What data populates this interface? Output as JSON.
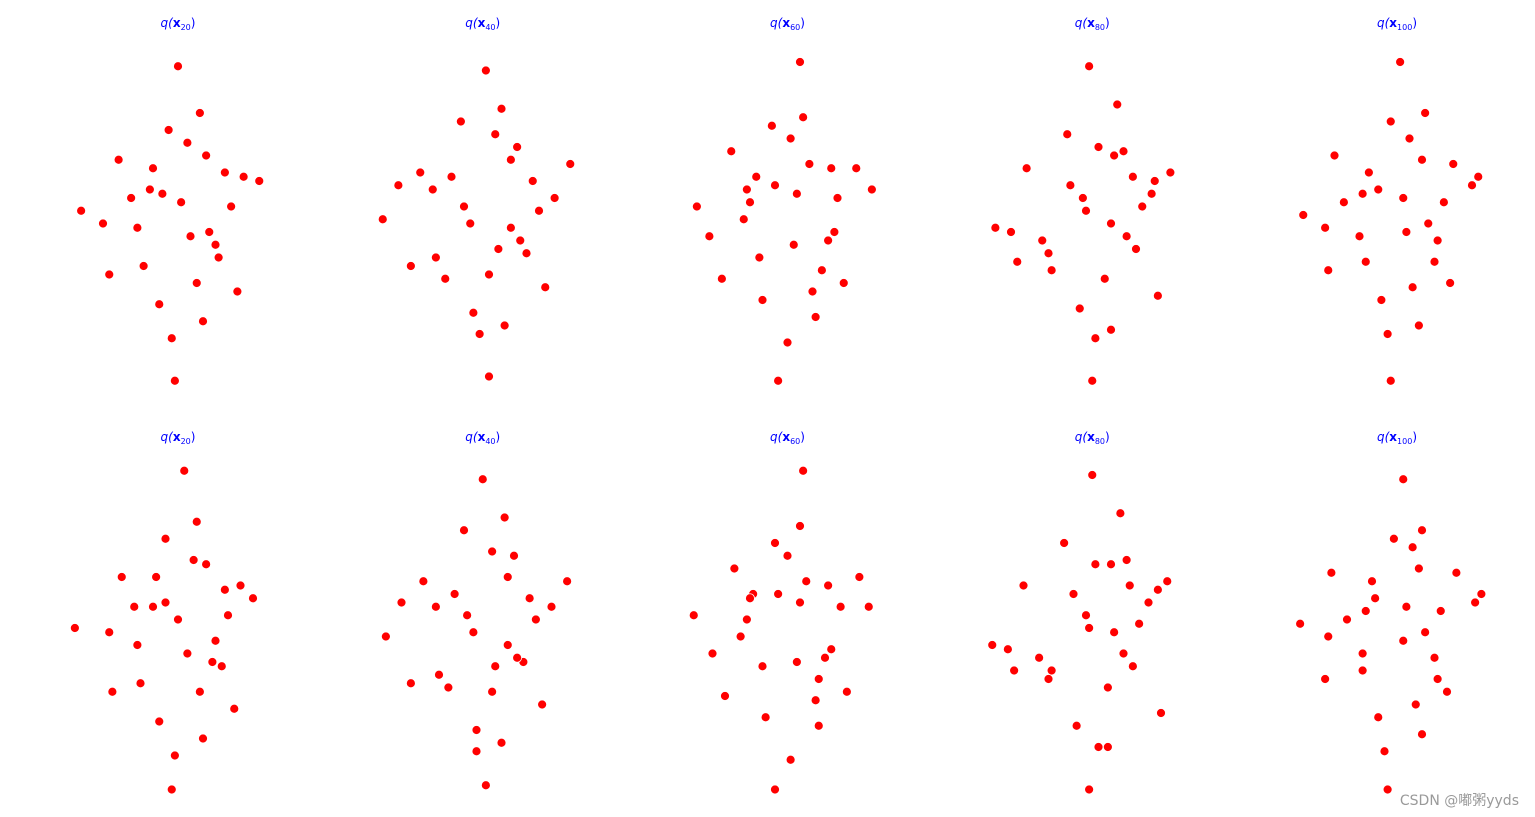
{
  "chart_data": [
    {
      "type": "scatter",
      "title": [
        "q(",
        "x",
        "20",
        ")"
      ],
      "color": "#ff0000",
      "xlim": [
        -4,
        4
      ],
      "ylim": [
        -4,
        4
      ],
      "x": [
        0.1,
        -0.8,
        1.2,
        -1.5,
        0.6,
        -0.3,
        2.1,
        -2.4,
        0.9,
        -1.1,
        0.4,
        1.7,
        -0.6,
        -1.9,
        0.0,
        1.3,
        -0.9,
        2.6,
        -3.1,
        0.7,
        -0.2,
        1.0,
        -1.3,
        0.3,
        1.9,
        -0.5,
        -2.2,
        0.8,
        -0.1,
        1.5
      ],
      "y": [
        0.3,
        1.1,
        -0.7,
        0.4,
        -1.6,
        2.0,
        0.9,
        -0.2,
        1.4,
        -1.2,
        -0.5,
        0.2,
        -2.1,
        1.3,
        3.5,
        -1.0,
        0.6,
        0.8,
        0.1,
        2.4,
        -2.9,
        -0.4,
        -0.3,
        1.7,
        -1.8,
        0.5,
        -1.4,
        -2.5,
        -3.9,
        1.0
      ]
    },
    {
      "type": "scatter",
      "title": [
        "q(",
        "x",
        "40",
        ")"
      ],
      "color": "#ff0000",
      "xlim": [
        -4,
        4
      ],
      "ylim": [
        -4,
        4
      ],
      "x": [
        -0.4,
        0.9,
        -1.6,
        1.4,
        0.2,
        -0.7,
        2.3,
        -2.7,
        1.1,
        -1.2,
        0.5,
        1.8,
        -0.3,
        -2.0,
        0.1,
        1.2,
        -1.0,
        2.8,
        -3.2,
        0.6,
        -0.1,
        0.9,
        -1.5,
        0.4,
        2.0,
        -0.6,
        -2.3,
        0.7,
        0.2,
        1.6
      ],
      "y": [
        -0.2,
        1.3,
        0.6,
        -0.9,
        -1.4,
        2.2,
        0.4,
        0.7,
        1.6,
        -1.5,
        -0.8,
        0.1,
        -2.3,
        1.0,
        3.4,
        -0.6,
        0.9,
        1.2,
        -0.1,
        2.5,
        -2.8,
        -0.3,
        -1.0,
        1.9,
        -1.7,
        0.2,
        -1.2,
        -2.6,
        -3.8,
        0.8
      ]
    },
    {
      "type": "scatter",
      "title": [
        "q(",
        "x",
        "60",
        ")"
      ],
      "color": "#ff0000",
      "xlim": [
        -4,
        4
      ],
      "ylim": [
        -4,
        4
      ],
      "x": [
        0.3,
        -1.0,
        1.5,
        -1.3,
        0.8,
        -0.5,
        2.2,
        -2.5,
        0.7,
        -0.9,
        0.2,
        1.6,
        -0.8,
        -1.8,
        0.4,
        1.1,
        -1.2,
        2.7,
        -2.9,
        0.5,
        0.0,
        1.3,
        -1.4,
        0.1,
        1.8,
        -0.4,
        -2.1,
        0.9,
        -0.3,
        1.4
      ],
      "y": [
        0.5,
        0.9,
        -0.4,
        0.6,
        -1.8,
        2.1,
        1.1,
        -0.5,
        1.2,
        -1.0,
        -0.7,
        0.4,
        -2.0,
        1.5,
        3.6,
        -1.3,
        0.3,
        0.6,
        0.2,
        2.3,
        -3.0,
        -0.6,
        -0.1,
        1.8,
        -1.6,
        0.7,
        -1.5,
        -2.4,
        -3.9,
        1.1
      ]
    },
    {
      "type": "scatter",
      "title": [
        "q(",
        "x",
        "80",
        ")"
      ],
      "color": "#ff0000",
      "xlim": [
        -4,
        4
      ],
      "ylim": [
        -4,
        4
      ],
      "x": [
        -0.2,
        0.7,
        -1.4,
        1.6,
        0.4,
        -0.8,
        2.0,
        -2.6,
        1.0,
        -1.3,
        0.6,
        1.9,
        -0.4,
        -2.1,
        -0.1,
        1.4,
        -0.7,
        2.5,
        -3.1,
        0.8,
        0.1,
        1.1,
        -1.6,
        0.2,
        2.1,
        -0.3,
        -2.4,
        0.6,
        0.0,
        1.3
      ],
      "y": [
        0.1,
        1.4,
        -0.9,
        0.2,
        -1.5,
        1.9,
        0.8,
        -0.4,
        1.5,
        -1.3,
        -0.2,
        0.5,
        -2.2,
        1.1,
        3.5,
        -0.8,
        0.7,
        1.0,
        -0.3,
        2.6,
        -2.9,
        -0.5,
        -0.6,
        1.6,
        -1.9,
        0.4,
        -1.1,
        -2.7,
        -3.9,
        0.9
      ]
    },
    {
      "type": "scatter",
      "title": [
        "q(",
        "x",
        "100",
        ")"
      ],
      "color": "#ff0000",
      "xlim": [
        -4,
        4
      ],
      "ylim": [
        -4,
        4
      ],
      "x": [
        0.2,
        -0.9,
        1.3,
        -1.7,
        0.5,
        -0.2,
        2.4,
        -2.3,
        0.8,
        -1.0,
        0.3,
        1.5,
        -0.5,
        -2.0,
        0.1,
        1.2,
        -1.1,
        2.6,
        -3.0,
        0.9,
        -0.3,
        1.0,
        -1.2,
        0.4,
        1.7,
        -0.6,
        -2.2,
        0.7,
        -0.2,
        1.8
      ],
      "y": [
        0.4,
        1.0,
        -0.6,
        0.3,
        -1.7,
        2.2,
        0.7,
        -0.3,
        1.3,
        -1.1,
        -0.4,
        0.3,
        -2.0,
        1.4,
        3.6,
        -1.1,
        0.5,
        0.9,
        0.0,
        2.4,
        -2.8,
        -0.2,
        -0.5,
        1.8,
        -1.6,
        0.6,
        -1.3,
        -2.6,
        -3.9,
        1.2
      ]
    },
    {
      "type": "scatter",
      "title": [
        "q(",
        "x",
        "20",
        ")"
      ],
      "color": "#ff0000",
      "xlim": [
        -4,
        4
      ],
      "ylim": [
        -4,
        4
      ],
      "x": [
        0.0,
        -0.7,
        1.1,
        -1.4,
        0.7,
        -0.4,
        2.0,
        -2.2,
        0.9,
        -1.2,
        0.3,
        1.6,
        -0.6,
        -1.8,
        0.2,
        1.4,
        -0.8,
        2.4,
        -3.3,
        0.6,
        -0.1,
        1.2,
        -1.3,
        0.5,
        1.8,
        -0.4,
        -2.1,
        0.8,
        -0.2,
        1.5
      ],
      "y": [
        0.2,
        1.2,
        -0.8,
        0.5,
        -1.5,
        2.1,
        1.0,
        -0.1,
        1.5,
        -1.3,
        -0.6,
        0.3,
        -2.2,
        1.2,
        3.7,
        -0.9,
        0.5,
        0.7,
        0.0,
        2.5,
        -3.0,
        -0.3,
        -0.4,
        1.6,
        -1.9,
        0.6,
        -1.5,
        -2.6,
        -3.8,
        0.9
      ]
    },
    {
      "type": "scatter",
      "title": [
        "q(",
        "x",
        "40",
        ")"
      ],
      "color": "#ff0000",
      "xlim": [
        -4,
        4
      ],
      "ylim": [
        -4,
        4
      ],
      "x": [
        -0.3,
        0.8,
        -1.5,
        1.3,
        0.3,
        -0.6,
        2.2,
        -2.6,
        1.0,
        -1.1,
        0.4,
        1.7,
        -0.2,
        -1.9,
        0.0,
        1.1,
        -0.9,
        2.7,
        -3.1,
        0.7,
        -0.2,
        0.8,
        -1.4,
        0.3,
        1.9,
        -0.5,
        -2.3,
        0.6,
        0.1,
        1.5
      ],
      "y": [
        -0.1,
        1.2,
        0.5,
        -0.8,
        -1.5,
        2.3,
        0.5,
        0.6,
        1.7,
        -1.4,
        -0.9,
        0.2,
        -2.4,
        1.1,
        3.5,
        -0.7,
        0.8,
        1.1,
        -0.2,
        2.6,
        -2.9,
        -0.4,
        -1.1,
        1.8,
        -1.8,
        0.3,
        -1.3,
        -2.7,
        -3.7,
        0.7
      ]
    },
    {
      "type": "scatter",
      "title": [
        "q(",
        "x",
        "60",
        ")"
      ],
      "color": "#ff0000",
      "xlim": [
        -4,
        4
      ],
      "ylim": [
        -4,
        4
      ],
      "x": [
        0.4,
        -1.1,
        1.4,
        -1.2,
        0.9,
        -0.4,
        2.3,
        -2.4,
        0.6,
        -0.8,
        0.3,
        1.7,
        -0.7,
        -1.7,
        0.5,
        1.0,
        -1.3,
        2.6,
        -3.0,
        0.4,
        0.1,
        1.2,
        -1.5,
        0.0,
        1.9,
        -0.3,
        -2.0,
        1.0,
        -0.4,
        1.3
      ],
      "y": [
        0.6,
        0.8,
        -0.5,
        0.7,
        -1.7,
        2.0,
        1.2,
        -0.6,
        1.1,
        -0.9,
        -0.8,
        0.5,
        -2.1,
        1.4,
        3.7,
        -1.2,
        0.2,
        0.5,
        0.3,
        2.4,
        -3.1,
        -0.7,
        -0.2,
        1.7,
        -1.5,
        0.8,
        -1.6,
        -2.3,
        -3.8,
        1.0
      ]
    },
    {
      "type": "scatter",
      "title": [
        "q(",
        "x",
        "80",
        ")"
      ],
      "color": "#ff0000",
      "xlim": [
        -4,
        4
      ],
      "ylim": [
        -4,
        4
      ],
      "x": [
        -0.1,
        0.6,
        -1.3,
        1.5,
        0.5,
        -0.9,
        2.1,
        -2.7,
        1.1,
        -1.4,
        0.7,
        1.8,
        -0.5,
        -2.2,
        0.0,
        1.3,
        -0.6,
        2.4,
        -3.2,
        0.9,
        0.2,
        1.0,
        -1.7,
        0.1,
        2.2,
        -0.2,
        -2.5,
        0.5,
        -0.1,
        1.2
      ],
      "y": [
        0.0,
        1.5,
        -1.0,
        0.1,
        -1.4,
        2.0,
        0.9,
        -0.5,
        1.6,
        -1.2,
        -0.1,
        0.6,
        -2.3,
        1.0,
        3.6,
        -0.9,
        0.8,
        1.1,
        -0.4,
        2.7,
        -2.8,
        -0.6,
        -0.7,
        1.5,
        -2.0,
        0.3,
        -1.0,
        -2.8,
        -3.8,
        1.0
      ]
    },
    {
      "type": "scatter",
      "title": [
        "q(",
        "x",
        "100",
        ")"
      ],
      "color": "#ff0000",
      "xlim": [
        -4,
        4
      ],
      "ylim": [
        -4,
        4
      ],
      "x": [
        0.3,
        -0.8,
        1.2,
        -1.6,
        0.6,
        -0.1,
        2.5,
        -2.2,
        0.7,
        -1.1,
        0.2,
        1.4,
        -0.6,
        -2.1,
        0.2,
        1.3,
        -1.0,
        2.7,
        -3.1,
        0.8,
        -0.4,
        0.9,
        -1.1,
        0.5,
        1.6,
        -0.7,
        -2.3,
        0.8,
        -0.3,
        1.9
      ],
      "y": [
        0.5,
        1.1,
        -0.7,
        0.2,
        -1.8,
        2.1,
        0.6,
        -0.2,
        1.4,
        -1.0,
        -0.3,
        0.4,
        -2.1,
        1.3,
        3.5,
        -1.2,
        0.4,
        0.8,
        0.1,
        2.3,
        -2.9,
        -0.1,
        -0.6,
        1.9,
        -1.5,
        0.7,
        -1.2,
        -2.5,
        -3.8,
        1.3
      ]
    }
  ],
  "watermark": "CSDN @嘟粥yyds"
}
